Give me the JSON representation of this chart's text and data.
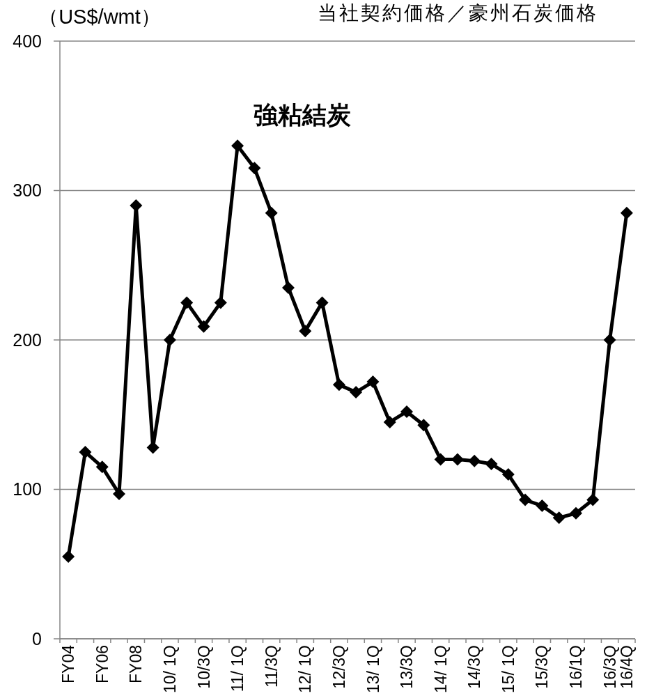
{
  "chart_data": {
    "type": "line",
    "title": "当社契約価格／豪州石炭価格",
    "ylabel": "（US$/wmt）",
    "categories": [
      "FY04",
      null,
      "FY06",
      null,
      "FY08",
      null,
      "10/ 1Q",
      null,
      "10/3Q",
      null,
      "11/ 1Q",
      null,
      "11/3Q",
      null,
      "12/ 1Q",
      null,
      "12/3Q",
      null,
      "13/ 1Q",
      null,
      "13/3Q",
      null,
      "14/ 1Q",
      null,
      "14/3Q",
      null,
      "15/ 1Q",
      null,
      "15/3Q",
      null,
      "16/1Q",
      null,
      "16/3Q",
      "16/4Q"
    ],
    "series": [
      {
        "name": "強粘結炭",
        "color": "#000000",
        "values": [
          55,
          125,
          115,
          97,
          290,
          128,
          200,
          225,
          209,
          225,
          330,
          315,
          285,
          235,
          206,
          225,
          170,
          165,
          172,
          145,
          152,
          143,
          120,
          120,
          119,
          117,
          110,
          93,
          89,
          81,
          84,
          93,
          200,
          285
        ]
      }
    ],
    "ylim": [
      0,
      400
    ],
    "yticks": [
      0,
      100,
      200,
      300,
      400
    ],
    "grid": "y",
    "marker": "diamond",
    "line_style": "solid"
  }
}
